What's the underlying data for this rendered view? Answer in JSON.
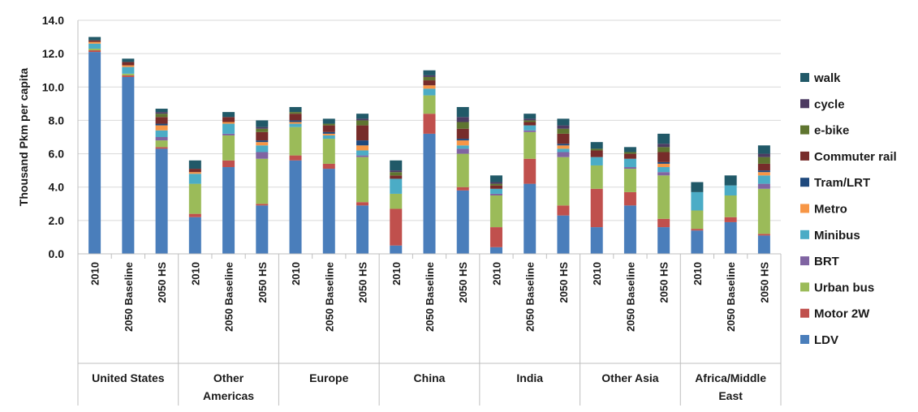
{
  "chart_data": {
    "type": "bar",
    "stacked": true,
    "ylabel": "Thousand Pkm per capita",
    "xlabel": "",
    "ylim": [
      0,
      14
    ],
    "yticks": [
      "0.0",
      "2.0",
      "4.0",
      "6.0",
      "8.0",
      "10.0",
      "12.0",
      "14.0"
    ],
    "grid": true,
    "legend_position": "right",
    "groups": [
      {
        "name": "United States",
        "categories": [
          "2010",
          "2050 Baseline",
          "2050 HS"
        ]
      },
      {
        "name": "Other Americas",
        "categories": [
          "2010",
          "2050 Baseline",
          "2050 HS"
        ]
      },
      {
        "name": "Europe",
        "categories": [
          "2010",
          "2050 Baseline",
          "2050 HS"
        ]
      },
      {
        "name": "China",
        "categories": [
          "2010",
          "2050 Baseline",
          "2050 HS"
        ]
      },
      {
        "name": "India",
        "categories": [
          "2010",
          "2050 Baseline",
          "2050 HS"
        ]
      },
      {
        "name": "Other Asia",
        "categories": [
          "2010",
          "2050 Baseline",
          "2050 HS"
        ]
      },
      {
        "name": "Africa/Middle East",
        "categories": [
          "2010",
          "2050 Baseline",
          "2050 HS"
        ]
      }
    ],
    "series": [
      {
        "name": "LDV",
        "color": "#4a7ebb",
        "values": [
          12.1,
          10.6,
          6.3,
          2.2,
          5.2,
          2.9,
          5.6,
          5.1,
          2.9,
          0.5,
          7.2,
          3.8,
          0.4,
          4.2,
          2.3,
          1.6,
          2.9,
          1.6,
          1.4,
          1.9,
          1.1
        ]
      },
      {
        "name": "Motor 2W",
        "color": "#c0504d",
        "values": [
          0.1,
          0.1,
          0.1,
          0.2,
          0.4,
          0.1,
          0.3,
          0.3,
          0.2,
          2.2,
          1.2,
          0.2,
          1.2,
          1.5,
          0.6,
          2.3,
          0.8,
          0.5,
          0.1,
          0.3,
          0.1
        ]
      },
      {
        "name": "Urban bus",
        "color": "#9bbb59",
        "values": [
          0.1,
          0.1,
          0.4,
          1.8,
          1.5,
          2.7,
          1.7,
          1.5,
          2.7,
          0.9,
          1.1,
          2.0,
          1.9,
          1.6,
          2.9,
          1.4,
          1.4,
          2.6,
          1.1,
          1.3,
          2.7
        ]
      },
      {
        "name": "BRT",
        "color": "#8064a2",
        "values": [
          0.0,
          0.0,
          0.2,
          0.0,
          0.1,
          0.4,
          0.0,
          0.0,
          0.1,
          0.0,
          0.0,
          0.3,
          0.1,
          0.1,
          0.3,
          0.0,
          0.1,
          0.2,
          0.0,
          0.0,
          0.3
        ]
      },
      {
        "name": "Minibus",
        "color": "#4bacc6",
        "values": [
          0.3,
          0.4,
          0.4,
          0.6,
          0.6,
          0.4,
          0.2,
          0.2,
          0.3,
          0.9,
          0.4,
          0.2,
          0.3,
          0.3,
          0.2,
          0.5,
          0.5,
          0.3,
          1.1,
          0.6,
          0.5
        ]
      },
      {
        "name": "Metro",
        "color": "#f79646",
        "values": [
          0.1,
          0.1,
          0.3,
          0.1,
          0.1,
          0.2,
          0.1,
          0.1,
          0.3,
          0.0,
          0.2,
          0.3,
          0.0,
          0.0,
          0.2,
          0.0,
          0.0,
          0.2,
          0.0,
          0.0,
          0.2
        ]
      },
      {
        "name": "Tram/LRT",
        "color": "#1f497d",
        "values": [
          0.0,
          0.0,
          0.1,
          0.0,
          0.0,
          0.1,
          0.1,
          0.1,
          0.3,
          0.0,
          0.0,
          0.1,
          0.0,
          0.0,
          0.1,
          0.0,
          0.0,
          0.1,
          0.0,
          0.0,
          0.1
        ]
      },
      {
        "name": "Commuter rail",
        "color": "#772c2a",
        "values": [
          0.1,
          0.2,
          0.4,
          0.2,
          0.3,
          0.5,
          0.4,
          0.4,
          0.9,
          0.2,
          0.3,
          0.6,
          0.2,
          0.2,
          0.6,
          0.4,
          0.3,
          0.6,
          0.0,
          0.0,
          0.4
        ]
      },
      {
        "name": "e-bike",
        "color": "#5f7530",
        "values": [
          0.0,
          0.0,
          0.2,
          0.0,
          0.0,
          0.2,
          0.1,
          0.1,
          0.3,
          0.2,
          0.2,
          0.4,
          0.1,
          0.1,
          0.3,
          0.1,
          0.1,
          0.3,
          0.0,
          0.0,
          0.4
        ]
      },
      {
        "name": "cycle",
        "color": "#4d3b62",
        "values": [
          0.0,
          0.0,
          0.1,
          0.0,
          0.0,
          0.1,
          0.0,
          0.0,
          0.1,
          0.1,
          0.1,
          0.3,
          0.1,
          0.1,
          0.2,
          0.0,
          0.0,
          0.2,
          0.0,
          0.0,
          0.2
        ]
      },
      {
        "name": "walk",
        "color": "#215968",
        "values": [
          0.2,
          0.2,
          0.2,
          0.5,
          0.3,
          0.4,
          0.3,
          0.3,
          0.3,
          0.6,
          0.3,
          0.6,
          0.4,
          0.3,
          0.4,
          0.4,
          0.3,
          0.6,
          0.6,
          0.6,
          0.5
        ]
      }
    ]
  }
}
